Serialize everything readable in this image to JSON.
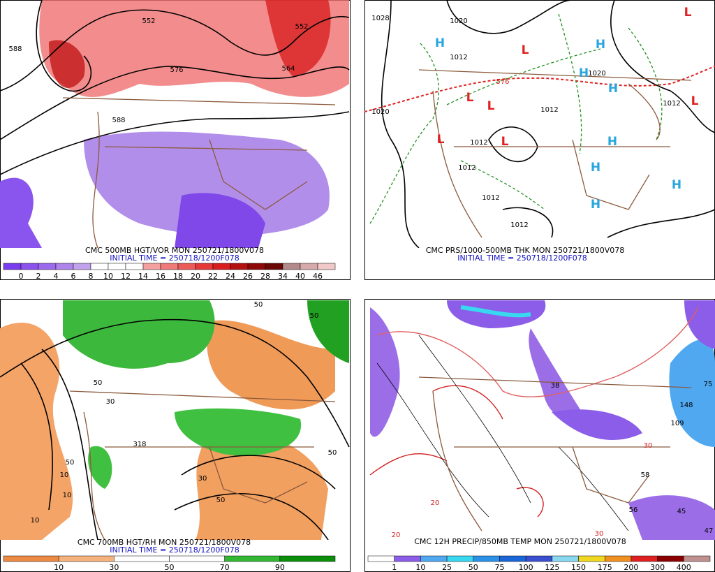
{
  "panels": [
    {
      "caption": "CMC 500MB HGT/VOR MON 250721/1800V078",
      "initial_time": "INITIAL TIME = 250718/1200F078",
      "colorbar": {
        "labels": [
          "0",
          "2",
          "4",
          "6",
          "8",
          "10",
          "12",
          "14",
          "16",
          "18",
          "20",
          "22",
          "24",
          "26",
          "28",
          "34",
          "40",
          "46"
        ],
        "colors": [
          "#7a3cf0",
          "#8b52ee",
          "#9c6aec",
          "#ae84ea",
          "#c2a2ec",
          "#ffffff",
          "#ffffff",
          "#ffffff",
          "#f5a0a0",
          "#f07a7a",
          "#ec5a5a",
          "#e63838",
          "#d81e1e",
          "#b51010",
          "#8e0808",
          "#6a0606",
          "#b38a8a",
          "#d6aaaa",
          "#f0c8c8"
        ]
      },
      "labels": [
        "588",
        "552",
        "552",
        "576",
        "564",
        "588"
      ]
    },
    {
      "caption": "CMC PRS/1000-500MB THK MON 250721/1800V078",
      "initial_time": "INITIAL TIME = 250718/1200F078",
      "labels": [
        "1028",
        "1020",
        "1012",
        "1020",
        "1012",
        "1012",
        "1012",
        "1012",
        "1012",
        "1012",
        "1020",
        "576",
        "H",
        "H",
        "H",
        "H",
        "H",
        "H",
        "H",
        "H",
        "L",
        "L",
        "L",
        "L",
        "L",
        "L",
        "L"
      ]
    },
    {
      "caption": "CMC 700MB HGT/RH MON 250721/1800V078",
      "initial_time": "INITIAL TIME = 250718/1200F078",
      "colorbar": {
        "labels": [
          "10",
          "30",
          "50",
          "70",
          "90"
        ],
        "colors": [
          "#ec8a44",
          "#f5b27c",
          "#ffffff",
          "#ffffff",
          "#33b833",
          "#0a8f0a"
        ]
      },
      "labels": [
        "50",
        "10",
        "30",
        "50",
        "50",
        "10",
        "50",
        "318",
        "10",
        "50",
        "50",
        "30"
      ]
    },
    {
      "caption": "CMC 12H PRECIP/850MB TEMP MON 250721/1800V078",
      "colorbar": {
        "labels": [
          "1",
          "10",
          "25",
          "50",
          "75",
          "100",
          "125",
          "150",
          "175",
          "200",
          "300",
          "400"
        ],
        "colors": [
          "#ffffff",
          "#8b5de8",
          "#4fa8f0",
          "#38d8f0",
          "#2a90e8",
          "#1a66d8",
          "#3a4fd0",
          "#88d8f0",
          "#f0d820",
          "#f09020",
          "#e02020",
          "#8a0000",
          "#c09090"
        ]
      },
      "labels": [
        "56",
        "58",
        "38",
        "109",
        "45",
        "47",
        "20",
        "30",
        "20",
        "148",
        "75",
        "30"
      ]
    }
  ]
}
